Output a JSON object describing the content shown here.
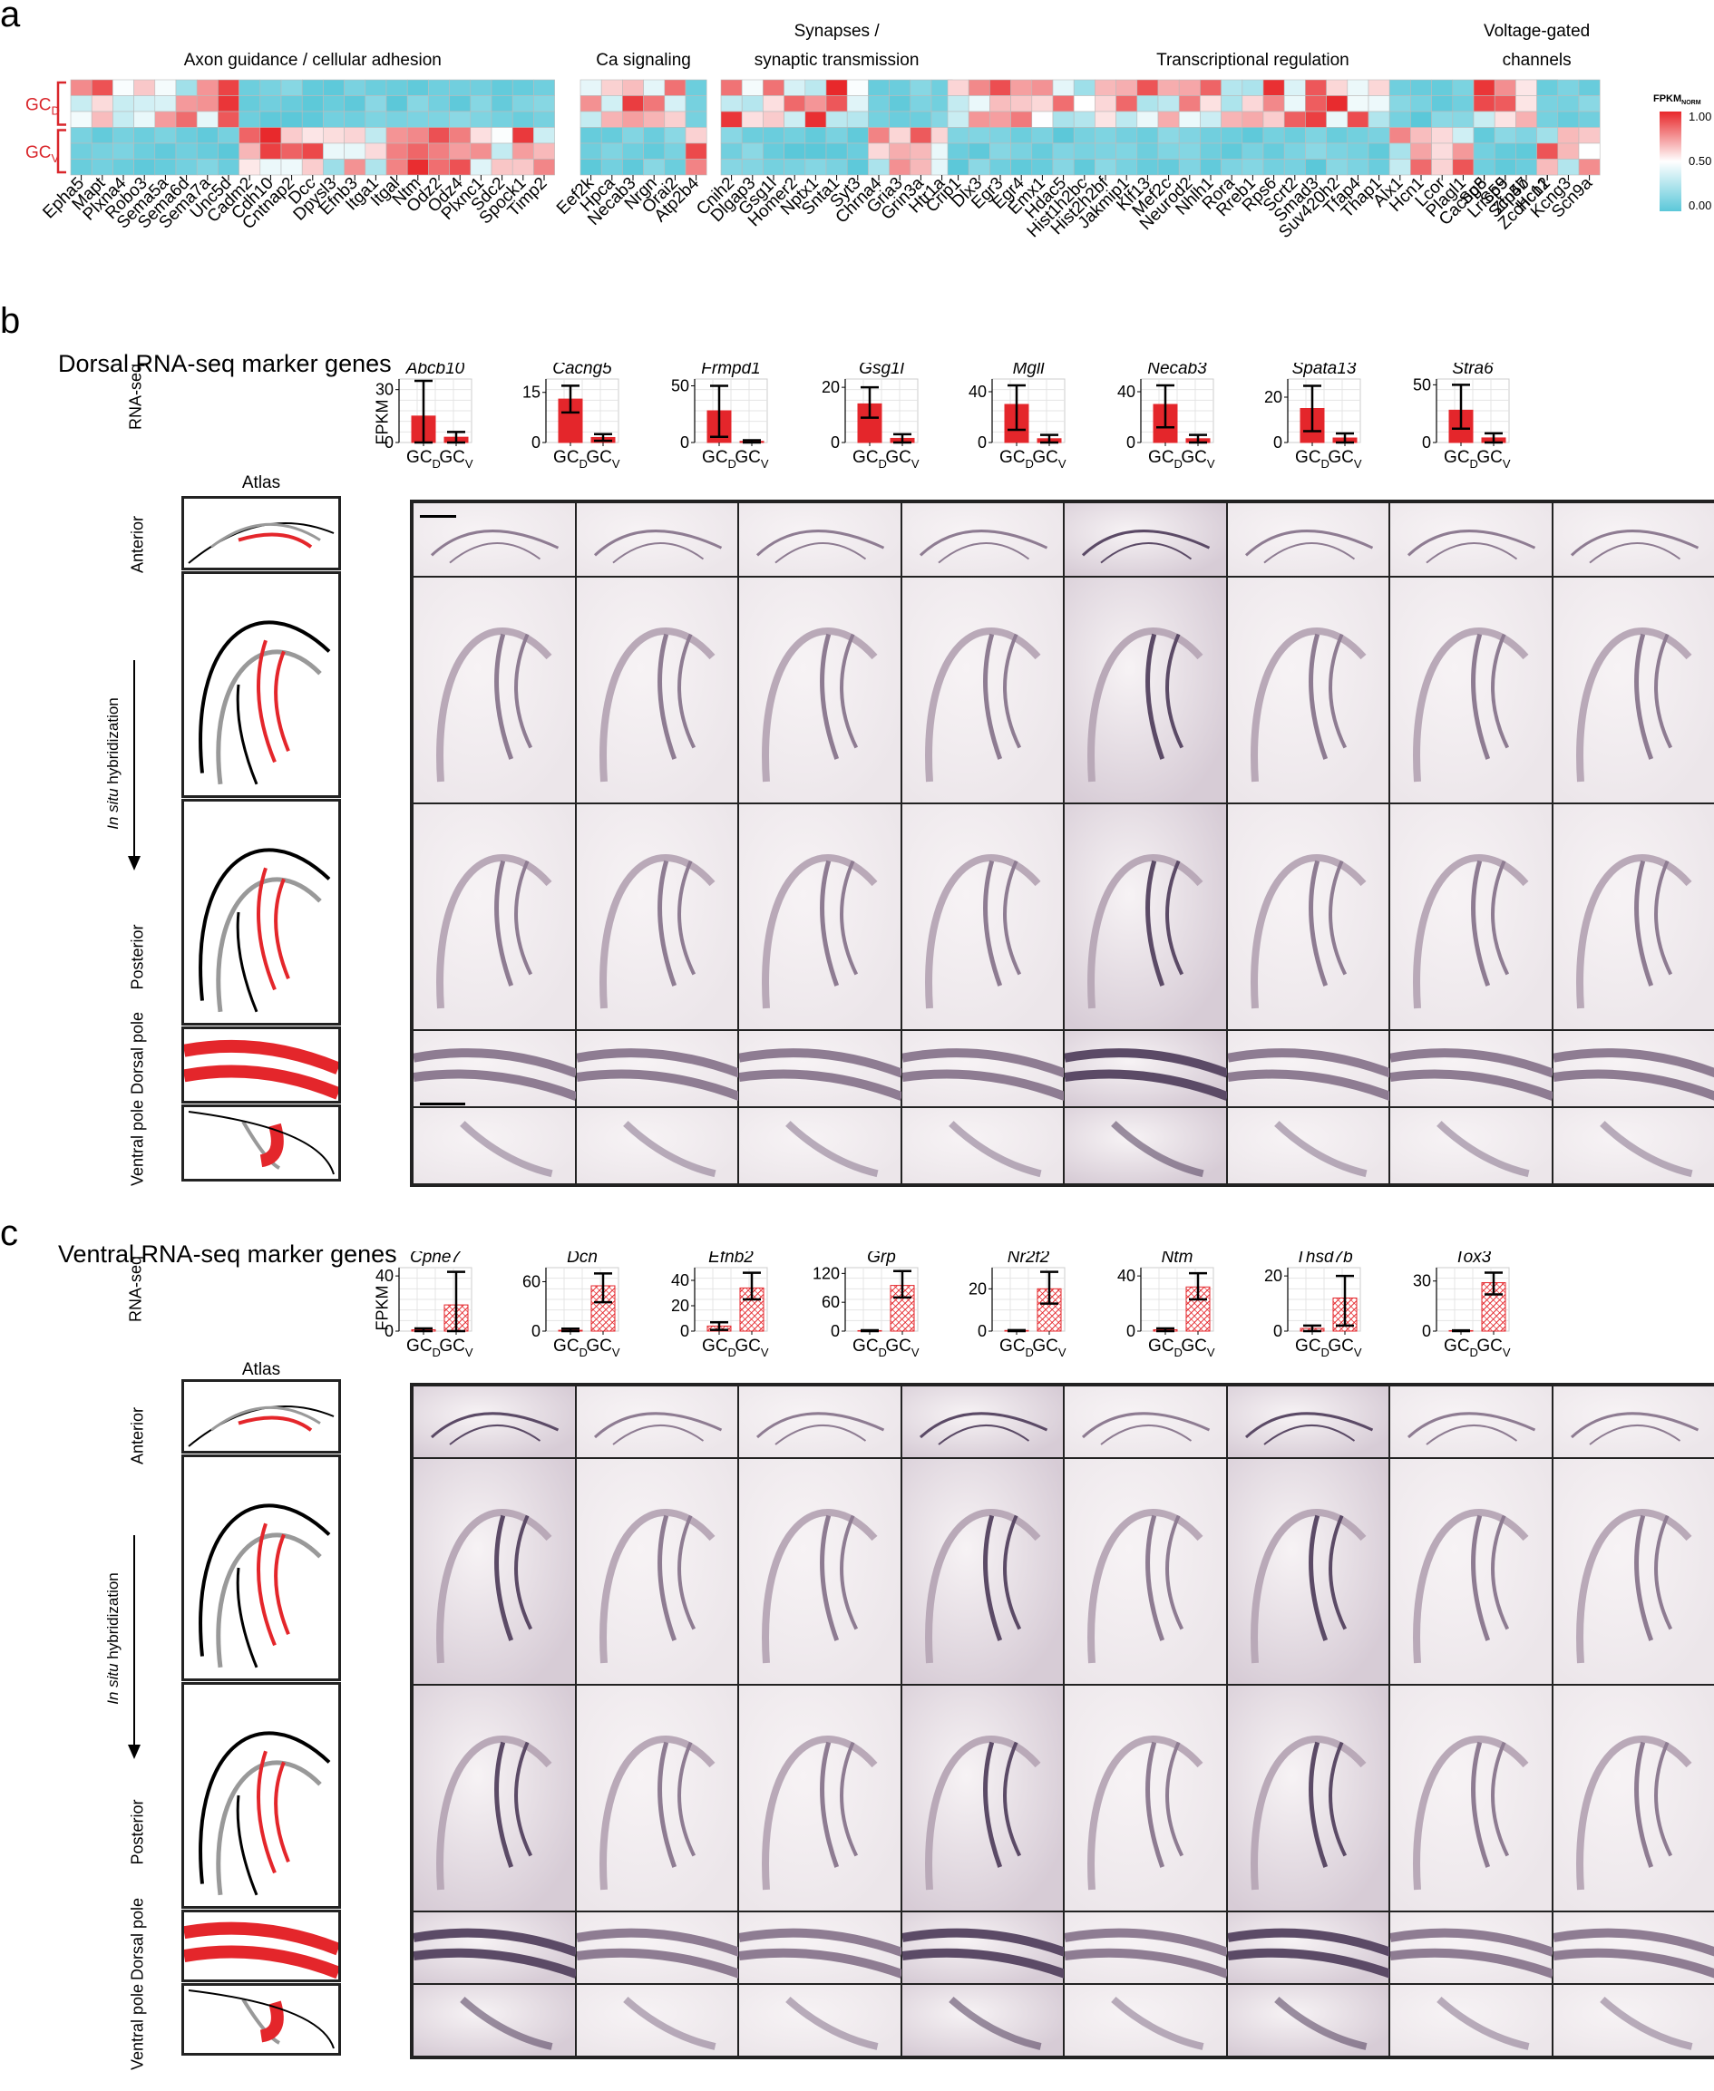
{
  "panel_a": {
    "letter": "a",
    "groups": [
      {
        "title": "Axon guidance / cellular adhesion",
        "genes": [
          "Epha5",
          "Mapt",
          "Plxna4",
          "Robo3",
          "Sema5a",
          "Sema6d",
          "Sema7a",
          "Unc5d",
          "Cadm2",
          "Cdh10",
          "Cntnap2",
          "Dcc",
          "Dpysl3",
          "Efnb3",
          "Itga1",
          "Itgal",
          "Ntm",
          "Odz2",
          "Odz4",
          "Plxnc1",
          "Sdc2",
          "Spock1",
          "Timp2"
        ]
      },
      {
        "title": "Ca signaling",
        "genes": [
          "Eef2k",
          "Hpca",
          "Necab3",
          "Nrgn",
          "Orai2",
          "Atp2b4"
        ]
      },
      {
        "title": "Synapses / synaptic transmission",
        "genes": [
          "Cnih2",
          "Dlgap3",
          "Gsg1l",
          "Homer2",
          "Nptx1",
          "Snta1",
          "Syt3",
          "Chrna4",
          "Gria3",
          "Grin3a",
          "Htr1a"
        ]
      },
      {
        "title": "Transcriptional regulation",
        "genes": [
          "Crip1",
          "Dlx3",
          "Egr3",
          "Egr4",
          "Emx1",
          "Hdac5",
          "Hist1h2bc",
          "Hist2h2bf",
          "Jakmip1",
          "Klf13",
          "Mef2c",
          "Neurod2",
          "Nhlh1",
          "Rora",
          "Rreb1",
          "Rps6",
          "Scrt2",
          "Smad3",
          "Suv420h2",
          "Tfap4",
          "Thap1",
          "Alx1",
          "Hcn1",
          "Lcor",
          "Plagl1",
          "Sp8",
          "Sp9",
          "Zfp57",
          "Zcchc12"
        ]
      },
      {
        "title": "Voltage-gated channels",
        "genes": [
          "Cacng5",
          "Lrrc55",
          "Scn4b",
          "Hcn1",
          "Kcng3",
          "Scn9a"
        ]
      }
    ],
    "row_groups": {
      "dorsal": "GC",
      "dorsal_sub": "D",
      "ventral": "GC",
      "ventral_sub": "V"
    },
    "legend": {
      "title": "FPKM",
      "title_sub": "NORM",
      "ticks": [
        "1.00",
        "0.50",
        "0.00"
      ],
      "high_color": "#e8272a",
      "mid_color": "#ffffff",
      "low_color": "#5bc8d9"
    }
  },
  "panel_b": {
    "letter": "b",
    "title": "Dorsal RNA-seq marker genes",
    "rnaseq_label": "RNA-seq",
    "ylabel": "FPKM",
    "atlas_label": "Atlas",
    "ish_label_italic": "In situ",
    "ish_label": "hybridization",
    "row_labels": [
      "Anterior",
      "Posterior",
      "Dorsal pole",
      "Ventral pole"
    ],
    "xcats": [
      "GC",
      "GC"
    ],
    "xsubs": [
      "D",
      "V"
    ]
  },
  "panel_c": {
    "letter": "c",
    "title": "Ventral RNA-seq marker genes",
    "rnaseq_label": "RNA-seq",
    "ylabel": "FPKM",
    "atlas_label": "Atlas",
    "ish_label_italic": "In situ",
    "ish_label": "hybridization",
    "row_labels": [
      "Anterior",
      "Posterior",
      "Dorsal pole",
      "Ventral pole"
    ],
    "xcats": [
      "GC",
      "GC"
    ],
    "xsubs": [
      "D",
      "V"
    ]
  },
  "chart_data": [
    {
      "type": "bar",
      "title": "Abcb10",
      "categories": [
        "GC_D",
        "GC_V"
      ],
      "values": [
        15,
        3
      ],
      "errors": [
        [
          0,
          35
        ],
        [
          0,
          6
        ]
      ],
      "yticks": [
        0,
        30
      ],
      "ylim": [
        0,
        36
      ],
      "pattern": "solid"
    },
    {
      "type": "bar",
      "title": "Cacng5",
      "categories": [
        "GC_D",
        "GC_V"
      ],
      "values": [
        13,
        1.5
      ],
      "errors": [
        [
          9,
          17
        ],
        [
          0.5,
          2.5
        ]
      ],
      "yticks": [
        0,
        15
      ],
      "ylim": [
        0,
        19
      ],
      "pattern": "solid"
    },
    {
      "type": "bar",
      "title": "Frmpd1",
      "categories": [
        "GC_D",
        "GC_V"
      ],
      "values": [
        28,
        1
      ],
      "errors": [
        [
          5,
          50
        ],
        [
          0,
          2
        ]
      ],
      "yticks": [
        0,
        50
      ],
      "ylim": [
        0,
        56
      ],
      "pattern": "solid"
    },
    {
      "type": "bar",
      "title": "Gsg1l",
      "categories": [
        "GC_D",
        "GC_V"
      ],
      "values": [
        14,
        1.5
      ],
      "errors": [
        [
          9,
          20
        ],
        [
          0,
          3
        ]
      ],
      "yticks": [
        0,
        20
      ],
      "ylim": [
        0,
        23
      ],
      "pattern": "solid"
    },
    {
      "type": "bar",
      "title": "Mgll",
      "categories": [
        "GC_D",
        "GC_V"
      ],
      "values": [
        30,
        3
      ],
      "errors": [
        [
          10,
          45
        ],
        [
          0,
          6
        ]
      ],
      "yticks": [
        0,
        40
      ],
      "ylim": [
        0,
        50
      ],
      "pattern": "solid"
    },
    {
      "type": "bar",
      "title": "Necab3",
      "categories": [
        "GC_D",
        "GC_V"
      ],
      "values": [
        30,
        3
      ],
      "errors": [
        [
          12,
          45
        ],
        [
          0,
          6
        ]
      ],
      "yticks": [
        0,
        40
      ],
      "ylim": [
        0,
        50
      ],
      "pattern": "solid"
    },
    {
      "type": "bar",
      "title": "Spata13",
      "categories": [
        "GC_D",
        "GC_V"
      ],
      "values": [
        15,
        2
      ],
      "errors": [
        [
          5,
          25
        ],
        [
          0,
          4
        ]
      ],
      "yticks": [
        0,
        20
      ],
      "ylim": [
        0,
        28
      ],
      "pattern": "solid"
    },
    {
      "type": "bar",
      "title": "Stra6",
      "categories": [
        "GC_D",
        "GC_V"
      ],
      "values": [
        28,
        4
      ],
      "errors": [
        [
          12,
          50
        ],
        [
          0,
          8
        ]
      ],
      "yticks": [
        0,
        50
      ],
      "ylim": [
        0,
        55
      ],
      "pattern": "solid"
    },
    {
      "type": "bar",
      "title": "Cpne7",
      "categories": [
        "GC_D",
        "GC_V"
      ],
      "values": [
        1,
        19
      ],
      "errors": [
        [
          0,
          2
        ],
        [
          0,
          43
        ]
      ],
      "yticks": [
        0,
        40
      ],
      "ylim": [
        0,
        46
      ],
      "pattern": "hatched"
    },
    {
      "type": "bar",
      "title": "Dcn",
      "categories": [
        "GC_D",
        "GC_V"
      ],
      "values": [
        1,
        55
      ],
      "errors": [
        [
          0,
          3
        ],
        [
          35,
          70
        ]
      ],
      "yticks": [
        0,
        60
      ],
      "ylim": [
        0,
        77
      ],
      "pattern": "hatched"
    },
    {
      "type": "bar",
      "title": "Efnb2",
      "categories": [
        "GC_D",
        "GC_V"
      ],
      "values": [
        4,
        34
      ],
      "errors": [
        [
          1,
          7
        ],
        [
          25,
          46
        ]
      ],
      "yticks": [
        0,
        20,
        40
      ],
      "ylim": [
        0,
        50
      ],
      "pattern": "hatched"
    },
    {
      "type": "bar",
      "title": "Grp",
      "categories": [
        "GC_D",
        "GC_V"
      ],
      "values": [
        1,
        95
      ],
      "errors": [
        [
          0,
          2
        ],
        [
          70,
          125
        ]
      ],
      "yticks": [
        0,
        60,
        120
      ],
      "ylim": [
        0,
        132
      ],
      "pattern": "hatched"
    },
    {
      "type": "bar",
      "title": "Nr2f2",
      "categories": [
        "GC_D",
        "GC_V"
      ],
      "values": [
        0.3,
        20
      ],
      "errors": [
        [
          0,
          0.5
        ],
        [
          13,
          28
        ]
      ],
      "yticks": [
        0,
        20
      ],
      "ylim": [
        0,
        30
      ],
      "pattern": "hatched"
    },
    {
      "type": "bar",
      "title": "Ntm",
      "categories": [
        "GC_D",
        "GC_V"
      ],
      "values": [
        1,
        32
      ],
      "errors": [
        [
          0,
          2
        ],
        [
          23,
          42
        ]
      ],
      "yticks": [
        0,
        40
      ],
      "ylim": [
        0,
        46
      ],
      "pattern": "hatched"
    },
    {
      "type": "bar",
      "title": "Thsd7b",
      "categories": [
        "GC_D",
        "GC_V"
      ],
      "values": [
        1,
        12
      ],
      "errors": [
        [
          0,
          2
        ],
        [
          2,
          20
        ]
      ],
      "yticks": [
        0,
        20
      ],
      "ylim": [
        0,
        23
      ],
      "pattern": "hatched"
    },
    {
      "type": "bar",
      "title": "Tox3",
      "categories": [
        "GC_D",
        "GC_V"
      ],
      "values": [
        0.3,
        29
      ],
      "errors": [
        [
          0,
          0.5
        ],
        [
          22,
          35
        ]
      ],
      "yticks": [
        0,
        30
      ],
      "ylim": [
        0,
        38
      ],
      "pattern": "hatched"
    }
  ]
}
